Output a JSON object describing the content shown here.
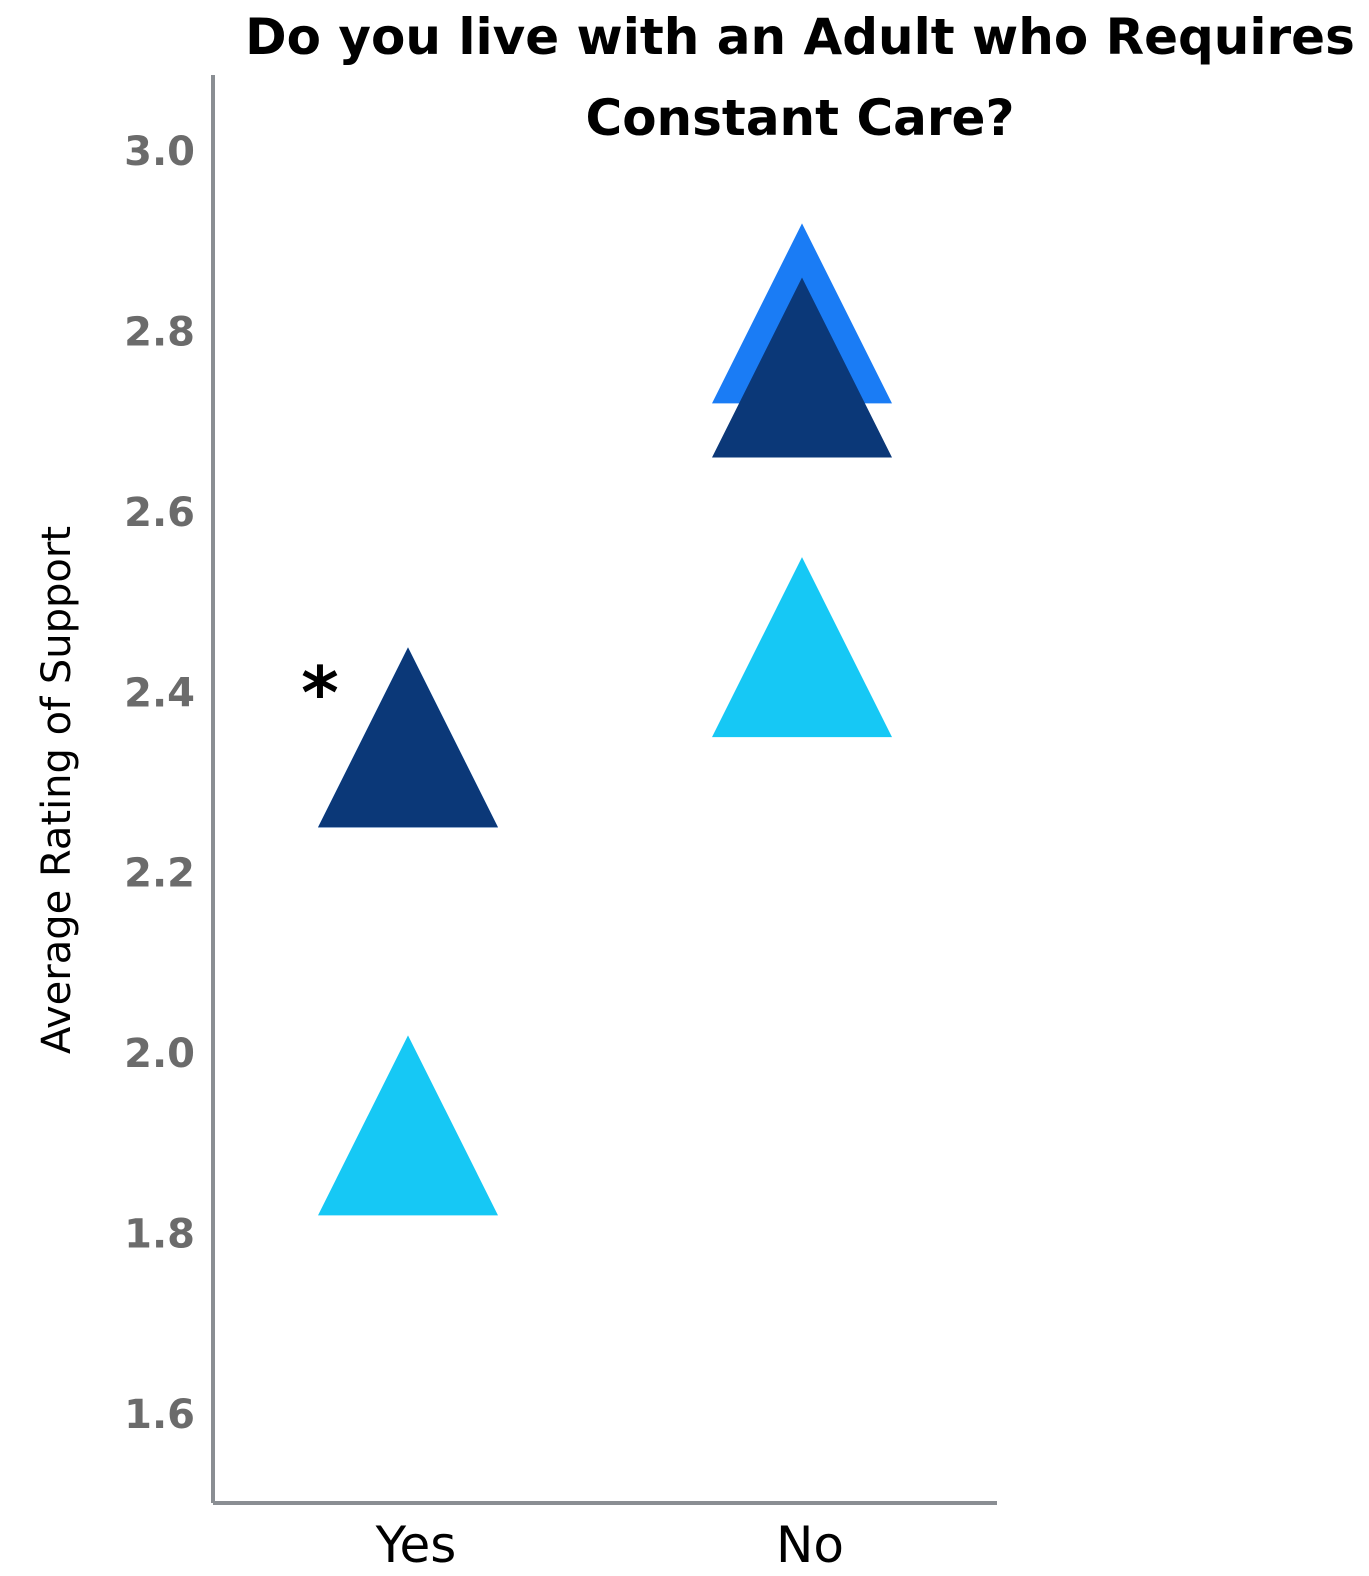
{
  "chart_data": {
    "type": "scatter",
    "title_lines": [
      "Do you live with an Adult who Requires",
      "Constant Care?"
    ],
    "xlabel": "",
    "ylabel": "Average Rating of Support",
    "categories": [
      "Yes",
      "No"
    ],
    "ylim": [
      1.5,
      3.08
    ],
    "yticks": [
      1.6,
      1.8,
      2.0,
      2.2,
      2.4,
      2.6,
      2.8,
      3.0
    ],
    "ytick_labels": [
      "1.6",
      "1.8",
      "2.0",
      "2.2",
      "2.4",
      "2.6",
      "2.8",
      "3.0"
    ],
    "marker": "triangle",
    "grid": false,
    "legend": "none",
    "series": [
      {
        "color": "#1a7cf5",
        "values": [
          2.35,
          2.82
        ]
      },
      {
        "color": "#0b3878",
        "values": [
          2.35,
          2.76
        ]
      },
      {
        "color": "#16c8f5",
        "values": [
          1.92,
          2.45
        ]
      }
    ],
    "annotations": [
      {
        "text": "*",
        "category": "Yes",
        "y": 2.42
      }
    ]
  }
}
